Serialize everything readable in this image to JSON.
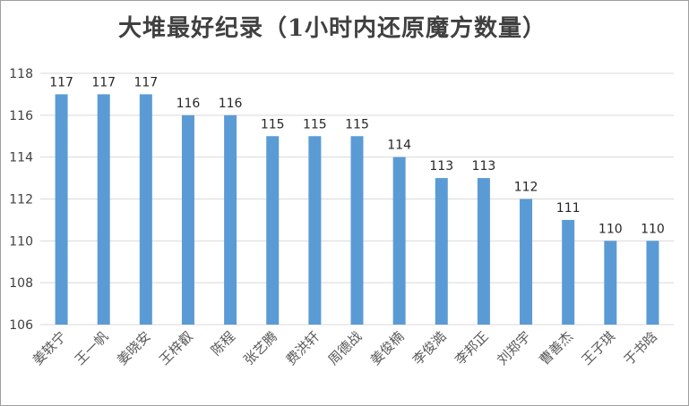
{
  "chart_data": {
    "type": "bar",
    "title": "大堆最好纪录（1小时内还原魔方数量）",
    "categories": [
      "姜轶宁",
      "王一帆",
      "姜晓安",
      "王梓叡",
      "陈程",
      "张艺腾",
      "费洪轩",
      "周德战",
      "姜俊楠",
      "李俊澔",
      "李邦正",
      "刘郑宇",
      "曹善杰",
      "王子琪",
      "于书晗"
    ],
    "values": [
      117,
      117,
      117,
      116,
      116,
      115,
      115,
      115,
      114,
      113,
      113,
      112,
      111,
      110,
      110
    ],
    "ylim": [
      106,
      118
    ],
    "yticks": [
      106,
      108,
      110,
      112,
      114,
      116,
      118
    ],
    "data_labels": true,
    "grid": true,
    "legend": "none",
    "bar_color": "#5b9bd5",
    "grid_color": "#d9d9d9"
  }
}
